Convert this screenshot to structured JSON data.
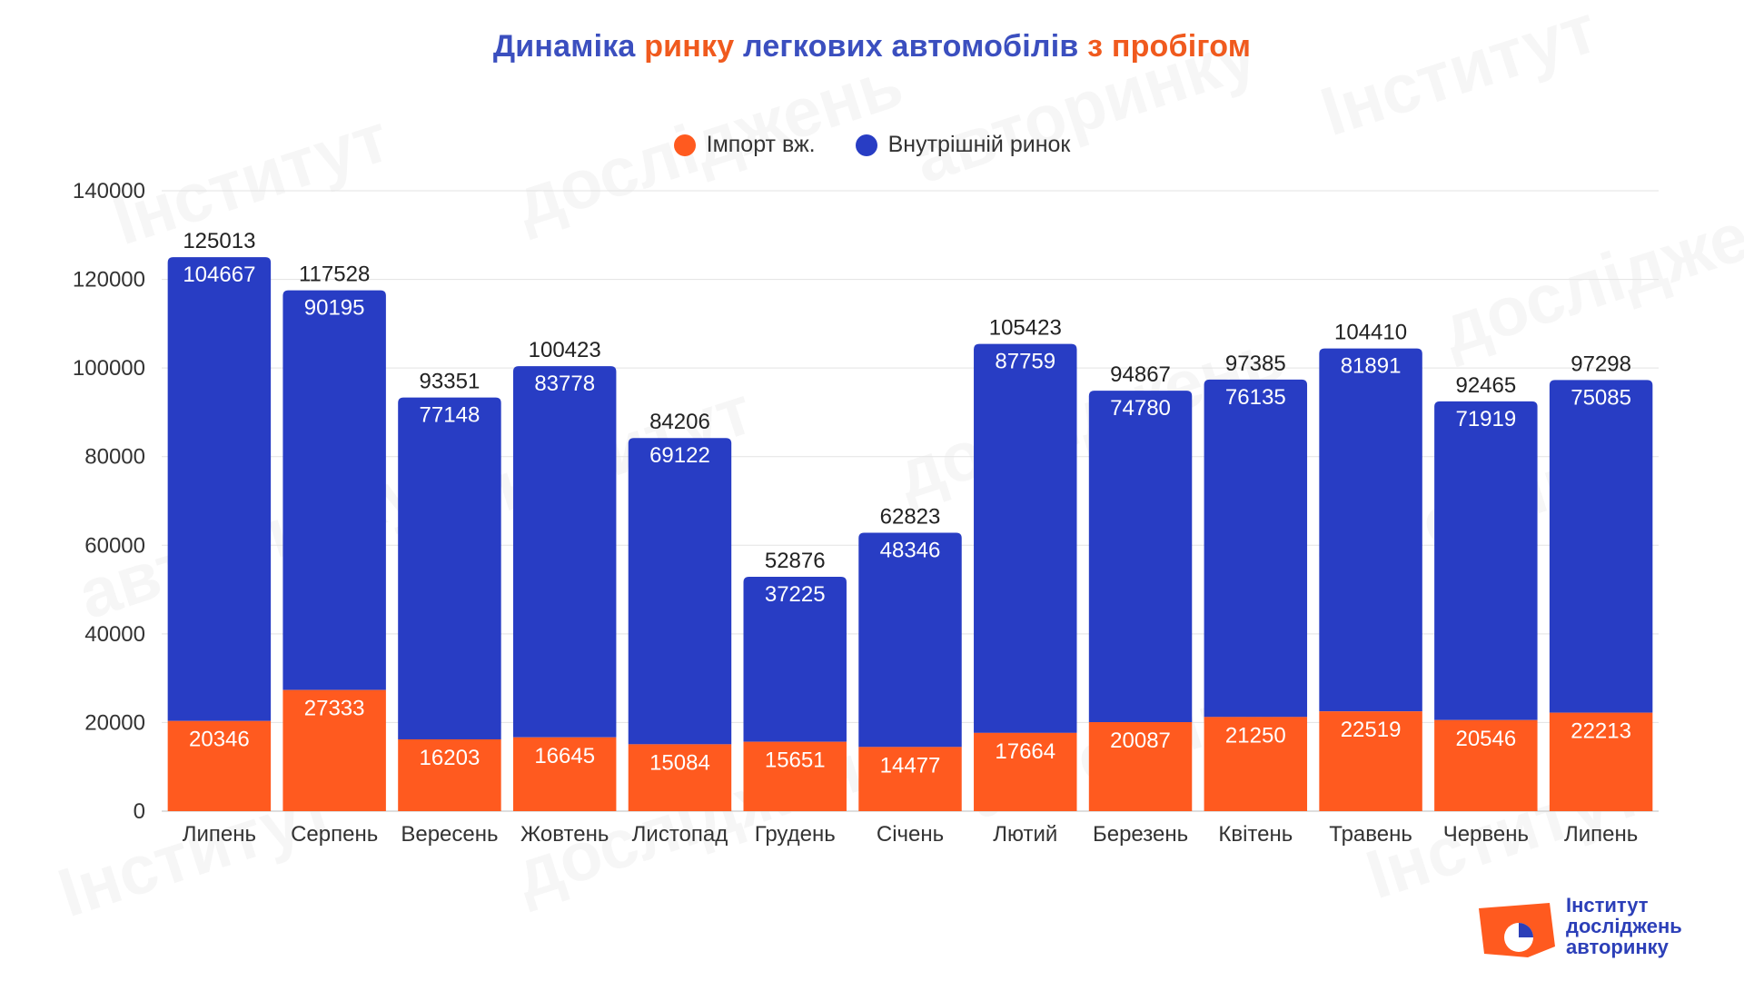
{
  "title": {
    "part1": "Динаміка ",
    "part2": "ринку",
    "part3": " легкових автомобілів ",
    "part4": "з пробігом"
  },
  "colors": {
    "import": "#ff5a1f",
    "domestic": "#283dc4",
    "title_blue": "#3b4fbf",
    "title_orange": "#f05a1e"
  },
  "logo": {
    "line1": "Інститут",
    "line2": "досліджень",
    "line3": "авторинку"
  },
  "watermark_text": "Інститут досліджень авторинку",
  "chart_data": {
    "type": "bar",
    "stacked": true,
    "title": "Динаміка ринку легкових автомобілів з пробігом",
    "categories": [
      "Липень",
      "Серпень",
      "Вересень",
      "Жовтень",
      "Листопад",
      "Грудень",
      "Січень",
      "Лютий",
      "Березень",
      "Квітень",
      "Травень",
      "Червень",
      "Липень"
    ],
    "series": [
      {
        "name": "Імпорт вж.",
        "color": "#ff5a1f",
        "values": [
          20346,
          27333,
          16203,
          16645,
          15084,
          15651,
          14477,
          17664,
          20087,
          21250,
          22519,
          20546,
          22213
        ]
      },
      {
        "name": "Внутрішній ринок",
        "color": "#283dc4",
        "values": [
          104667,
          90195,
          77148,
          83778,
          69122,
          37225,
          48346,
          87759,
          74780,
          76135,
          81891,
          71919,
          75085
        ]
      }
    ],
    "totals": [
      125013,
      117528,
      93351,
      100423,
      84206,
      52876,
      62823,
      105423,
      94867,
      97385,
      104410,
      92465,
      97298
    ],
    "ylim": [
      0,
      140000
    ],
    "yticks": [
      0,
      20000,
      40000,
      60000,
      80000,
      100000,
      120000,
      140000
    ],
    "grid": true,
    "legend_position": "top"
  }
}
